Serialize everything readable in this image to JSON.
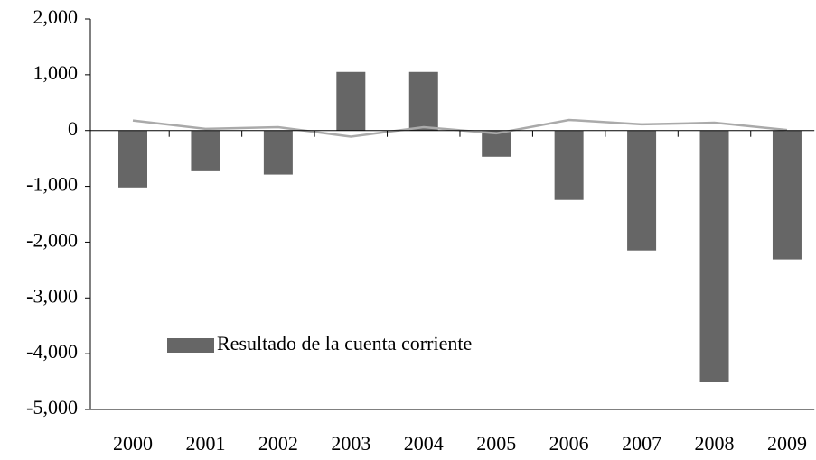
{
  "chart_data": {
    "type": "bar",
    "categories": [
      "2000",
      "2001",
      "2002",
      "2003",
      "2004",
      "2005",
      "2006",
      "2007",
      "2008",
      "2009"
    ],
    "series": [
      {
        "name": "Resultado de la cuenta corriente",
        "color": "#666666",
        "values": [
          -1020,
          -730,
          -790,
          1050,
          1050,
          -470,
          -1245,
          -2150,
          -4510,
          -2310
        ]
      },
      {
        "type": "line",
        "color": "#aaaaaa",
        "values": [
          180,
          30,
          60,
          -110,
          60,
          -50,
          190,
          110,
          140,
          10
        ]
      }
    ],
    "ylim": [
      -5000,
      2000
    ],
    "yticks": [
      {
        "value": -5000,
        "label": "-5,000"
      },
      {
        "value": -4000,
        "label": "-4,000"
      },
      {
        "value": -3000,
        "label": "-3,000"
      },
      {
        "value": -2000,
        "label": "-2,000"
      },
      {
        "value": -1000,
        "label": "-1,000"
      },
      0,
      {
        "value": 1000,
        "label": "1,000"
      },
      {
        "value": 2000,
        "label": "2,000"
      }
    ],
    "grid": false,
    "legend": "lower left"
  }
}
